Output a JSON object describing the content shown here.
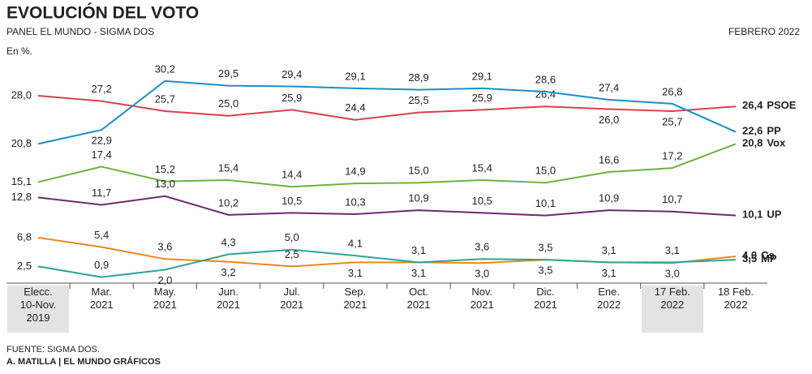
{
  "chart_data": {
    "type": "line",
    "title": "EVOLUCIÓN DEL VOTO",
    "subtitle": "PANEL EL MUNDO - SIGMA DOS",
    "date": "FEBRERO 2022",
    "unit_label": "En %.",
    "source": "FUENTE: SIGMA DOS.",
    "credit": "A. MATILLA | EL MUNDO GRÁFICOS",
    "categories": [
      "Elecc.\n10-Nov.\n2019",
      "Mar.\n2021",
      "May.\n2021",
      "Jun.\n2021",
      "Jul.\n2021",
      "Sep.\n2021",
      "Oct.\n2021",
      "Nov.\n2021",
      "Dic.\n2021",
      "Ene.\n2022",
      "17 Feb.\n2022",
      "18 Feb.\n2022"
    ],
    "ylim": [
      0,
      32
    ],
    "series": [
      {
        "name": "PSOE",
        "color": "#d9414e",
        "values": [
          28.0,
          27.2,
          25.7,
          25.0,
          25.9,
          24.4,
          25.5,
          25.9,
          26.4,
          26.0,
          25.7,
          26.4
        ],
        "value_labels": [
          "28,0",
          "27,2",
          "25,7",
          "25,0",
          "25,9",
          "24,4",
          "25,5",
          "25,9",
          "26,4",
          "26,0",
          "25,7",
          "26,4"
        ]
      },
      {
        "name": "PP",
        "color": "#1a8fc7",
        "values": [
          20.8,
          22.9,
          30.2,
          29.5,
          29.4,
          29.1,
          28.9,
          29.1,
          28.6,
          27.4,
          26.8,
          22.6
        ],
        "value_labels": [
          "20,8",
          "22,9",
          "30,2",
          "29,5",
          "29,4",
          "29,1",
          "28,9",
          "29,1",
          "28,6",
          "27,4",
          "26,8",
          "22,6"
        ]
      },
      {
        "name": "Vox",
        "color": "#6db33f",
        "values": [
          15.1,
          17.4,
          15.2,
          15.4,
          14.4,
          14.9,
          15.0,
          15.4,
          15.0,
          16.6,
          17.2,
          20.8
        ],
        "value_labels": [
          "15,1",
          "17,4",
          "15,2",
          "15,4",
          "14,4",
          "14,9",
          "15,0",
          "15,4",
          "15,0",
          "16,6",
          "17,2",
          "20,8"
        ]
      },
      {
        "name": "UP",
        "color": "#6b2c6b",
        "values": [
          12.8,
          11.7,
          13.0,
          10.2,
          10.5,
          10.3,
          10.9,
          10.5,
          10.1,
          10.9,
          10.7,
          10.1
        ],
        "value_labels": [
          "12,8",
          "11,7",
          "13,0",
          "10,2",
          "10,5",
          "10,3",
          "10,9",
          "10,5",
          "10,1",
          "10,9",
          "10,7",
          "10,1"
        ]
      },
      {
        "name": "Cs",
        "color": "#e8891e",
        "values": [
          6.8,
          5.4,
          3.6,
          3.2,
          2.5,
          3.1,
          3.1,
          3.0,
          3.5,
          3.1,
          3.0,
          4.0
        ],
        "value_labels": [
          "6,8",
          "5,4",
          "3,6",
          "3,2",
          "2,5",
          "3,1",
          "3,1",
          "3,0",
          "3,5",
          "3,1",
          "3,0",
          "4,0"
        ]
      },
      {
        "name": "MP",
        "color": "#2fa39a",
        "values": [
          2.5,
          0.9,
          2.0,
          4.3,
          5.0,
          4.1,
          3.1,
          3.6,
          3.5,
          3.1,
          3.1,
          3.5
        ],
        "value_labels": [
          "2,5",
          "0,9",
          "2,0",
          "4,3",
          "5,0",
          "4,1",
          "3,1",
          "3,6",
          "3,5",
          "3,1",
          "3,1",
          "3,5"
        ]
      }
    ]
  }
}
